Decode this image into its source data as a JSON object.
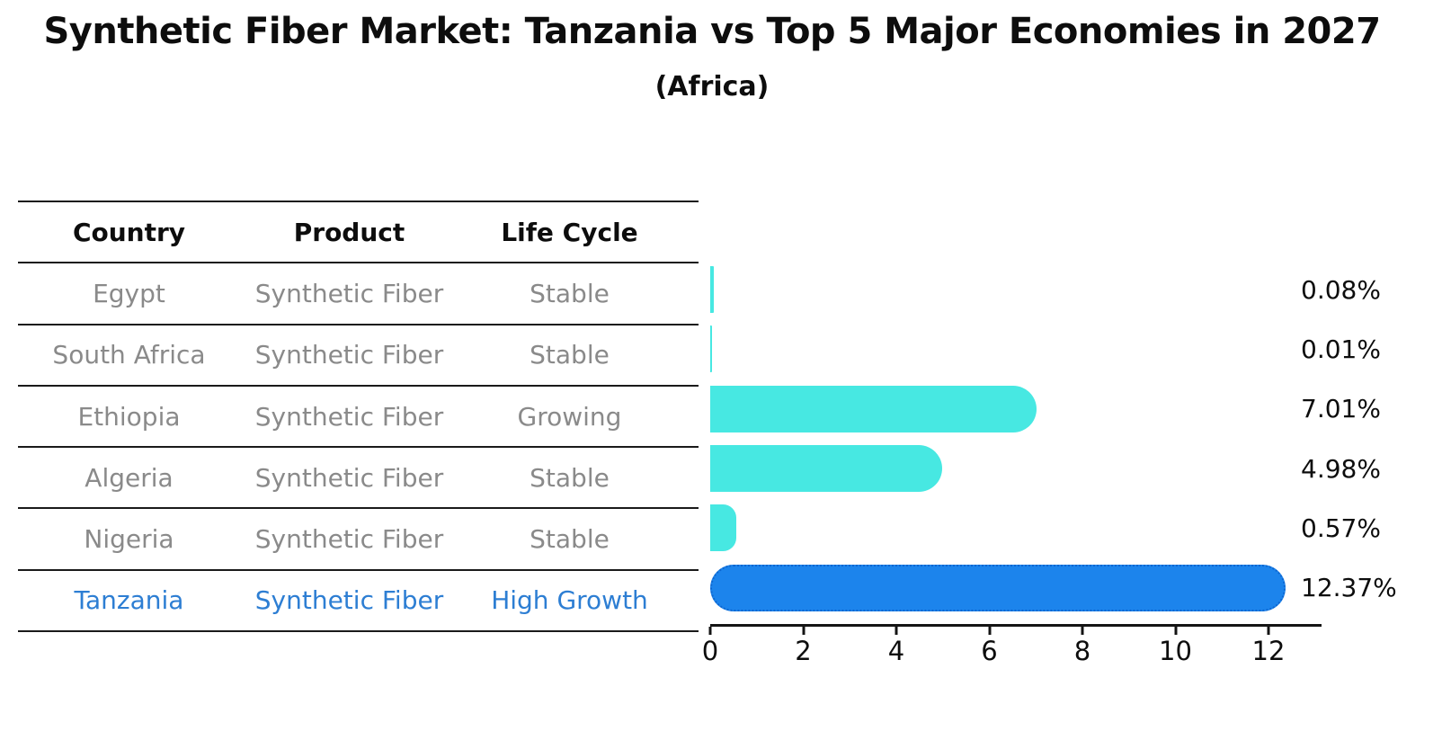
{
  "header": {
    "title": "Synthetic Fiber Market: Tanzania vs Top 5 Major Economies in 2027",
    "subtitle": "(Africa)"
  },
  "table": {
    "columns": [
      "Country",
      "Product",
      "Life Cycle"
    ],
    "rows": [
      {
        "country": "Egypt",
        "product": "Synthetic Fiber",
        "life_cycle": "Stable"
      },
      {
        "country": "South Africa",
        "product": "Synthetic Fiber",
        "life_cycle": "Stable"
      },
      {
        "country": "Ethiopia",
        "product": "Synthetic Fiber",
        "life_cycle": "Growing"
      },
      {
        "country": "Algeria",
        "product": "Synthetic Fiber",
        "life_cycle": "Stable"
      },
      {
        "country": "Nigeria",
        "product": "Synthetic Fiber",
        "life_cycle": "Stable"
      },
      {
        "country": "Tanzania",
        "product": "Synthetic Fiber",
        "life_cycle": "High Growth"
      }
    ]
  },
  "chart_data": {
    "type": "bar",
    "orientation": "horizontal",
    "title": "Synthetic Fiber Market: Tanzania vs Top 5 Major Economies in 2027",
    "subtitle": "(Africa)",
    "categories": [
      "Egypt",
      "South Africa",
      "Ethiopia",
      "Algeria",
      "Nigeria",
      "Tanzania"
    ],
    "values": [
      0.08,
      0.01,
      7.01,
      4.98,
      0.57,
      12.37
    ],
    "value_labels": [
      "0.08%",
      "0.01%",
      "7.01%",
      "4.98%",
      "0.57%",
      "12.37%"
    ],
    "x_ticks": [
      0,
      2,
      4,
      6,
      8,
      10,
      12
    ],
    "x_tick_labels": [
      "0",
      "2",
      "4",
      "6",
      "8",
      "10",
      "12"
    ],
    "xlim": [
      0,
      13.14
    ],
    "grid": false,
    "legend": "none",
    "bar_color": "#47e8e2",
    "highlight_index": 5,
    "highlight_color": "#1c84ec",
    "highlight_border": "#0d66d0",
    "text_color": "#8a8a8a",
    "highlight_text_color": "#2d7ed3"
  }
}
